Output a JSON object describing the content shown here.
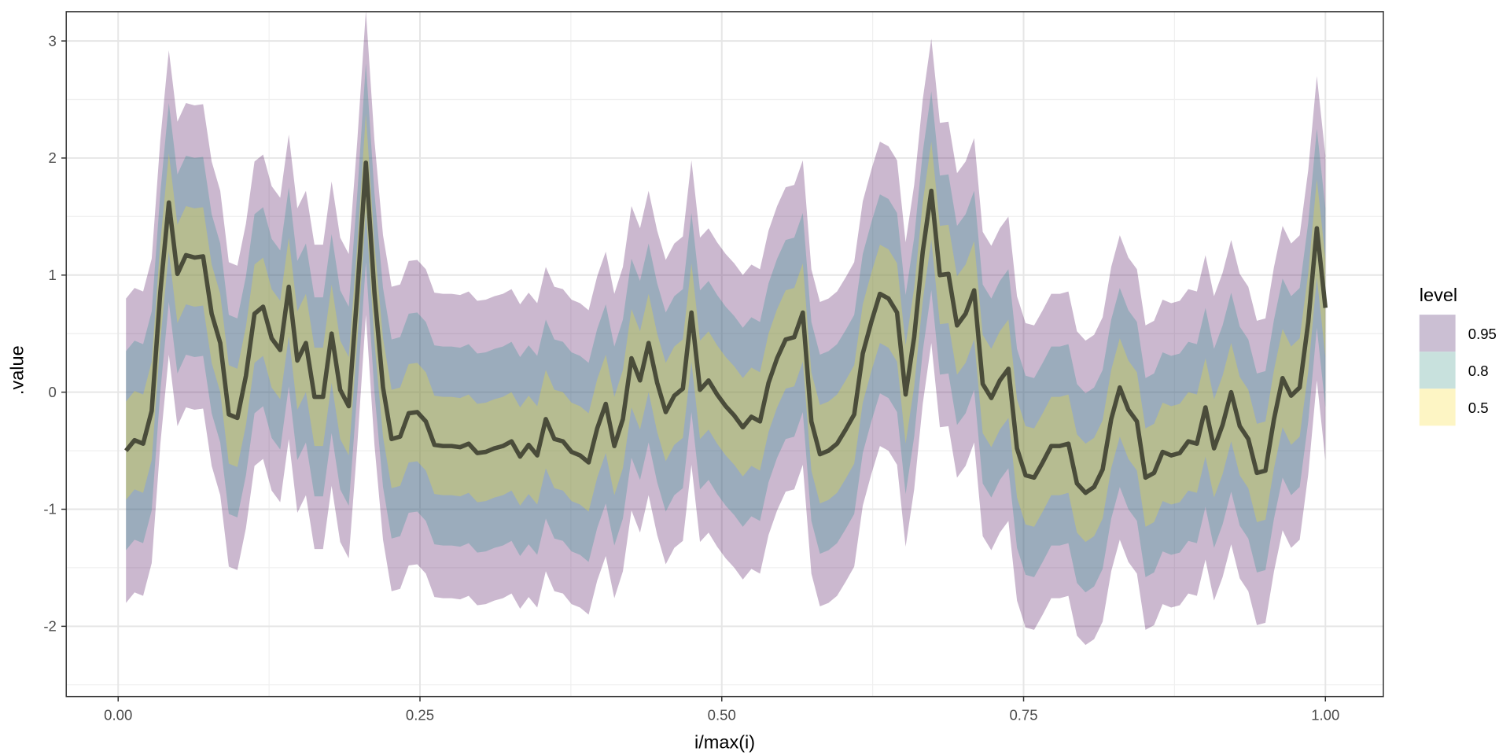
{
  "chart_data": {
    "type": "area",
    "title": "",
    "xlabel": "i/max(i)",
    "ylabel": ".value",
    "xlim": [
      -0.043,
      1.048
    ],
    "ylim": [
      -2.6,
      3.25
    ],
    "grid": true,
    "x_ticks": [
      "0.00",
      "0.25",
      "0.50",
      "0.75",
      "1.00"
    ],
    "x_tick_values": [
      0,
      0.25,
      0.5,
      0.75,
      1.0
    ],
    "y_ticks": [
      "-2",
      "-1",
      "0",
      "1",
      "2",
      "3"
    ],
    "y_tick_values": [
      -2,
      -1,
      0,
      1,
      2,
      3
    ],
    "x_range": [
      0.0065,
      1.0
    ],
    "median": [
      -0.5,
      -0.41,
      -0.44,
      -0.16,
      0.85,
      1.62,
      1.01,
      1.17,
      1.15,
      1.16,
      0.67,
      0.42,
      -0.19,
      -0.22,
      0.14,
      0.67,
      0.73,
      0.46,
      0.36,
      0.9,
      0.27,
      0.42,
      -0.04,
      -0.04,
      0.5,
      0.02,
      -0.12,
      0.85,
      1.96,
      0.85,
      0.04,
      -0.4,
      -0.38,
      -0.18,
      -0.17,
      -0.25,
      -0.45,
      -0.46,
      -0.46,
      -0.47,
      -0.44,
      -0.52,
      -0.51,
      -0.48,
      -0.46,
      -0.42,
      -0.55,
      -0.45,
      -0.54,
      -0.23,
      -0.4,
      -0.42,
      -0.51,
      -0.54,
      -0.6,
      -0.31,
      -0.1,
      -0.46,
      -0.23,
      0.29,
      0.1,
      0.42,
      0.08,
      -0.17,
      -0.03,
      0.03,
      0.68,
      0.02,
      0.1,
      -0.02,
      -0.12,
      -0.2,
      -0.3,
      -0.21,
      -0.25,
      0.08,
      0.29,
      0.45,
      0.47,
      0.68,
      -0.25,
      -0.53,
      -0.5,
      -0.44,
      -0.32,
      -0.19,
      0.33,
      0.6,
      0.84,
      0.8,
      0.68,
      -0.02,
      0.47,
      1.2,
      1.72,
      1.0,
      1.01,
      0.57,
      0.67,
      0.87,
      0.07,
      -0.05,
      0.1,
      0.2,
      -0.48,
      -0.71,
      -0.73,
      -0.6,
      -0.46,
      -0.46,
      -0.44,
      -0.78,
      -0.86,
      -0.81,
      -0.66,
      -0.23,
      0.04,
      -0.15,
      -0.25,
      -0.73,
      -0.69,
      -0.51,
      -0.54,
      -0.52,
      -0.42,
      -0.44,
      -0.13,
      -0.48,
      -0.28,
      0.0,
      -0.29,
      -0.4,
      -0.69,
      -0.67,
      -0.23,
      0.12,
      -0.03,
      0.04,
      0.6,
      1.4,
      0.72
    ],
    "intervals": [
      {
        "level": "0.95",
        "half_width": 1.3,
        "color": "#440154"
      },
      {
        "level": "0.8",
        "half_width": 0.85,
        "color": "#21908C"
      },
      {
        "level": "0.5",
        "half_width": 0.42,
        "color": "#FDE725"
      }
    ],
    "band_alpha": 0.28,
    "line_color": "#4a4c3a",
    "legend": {
      "title": "level",
      "placement": "right",
      "entries": [
        {
          "label": "0.95",
          "color": "#cbbfd3"
        },
        {
          "label": "0.8",
          "color": "#c8e1dd"
        },
        {
          "label": "0.5",
          "color": "#fdf5c4"
        }
      ]
    }
  }
}
